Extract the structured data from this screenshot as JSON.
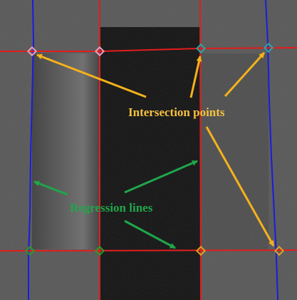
{
  "annotations": {
    "intersection_label": "Intersection points",
    "regression_label": "Regression lines"
  }
}
